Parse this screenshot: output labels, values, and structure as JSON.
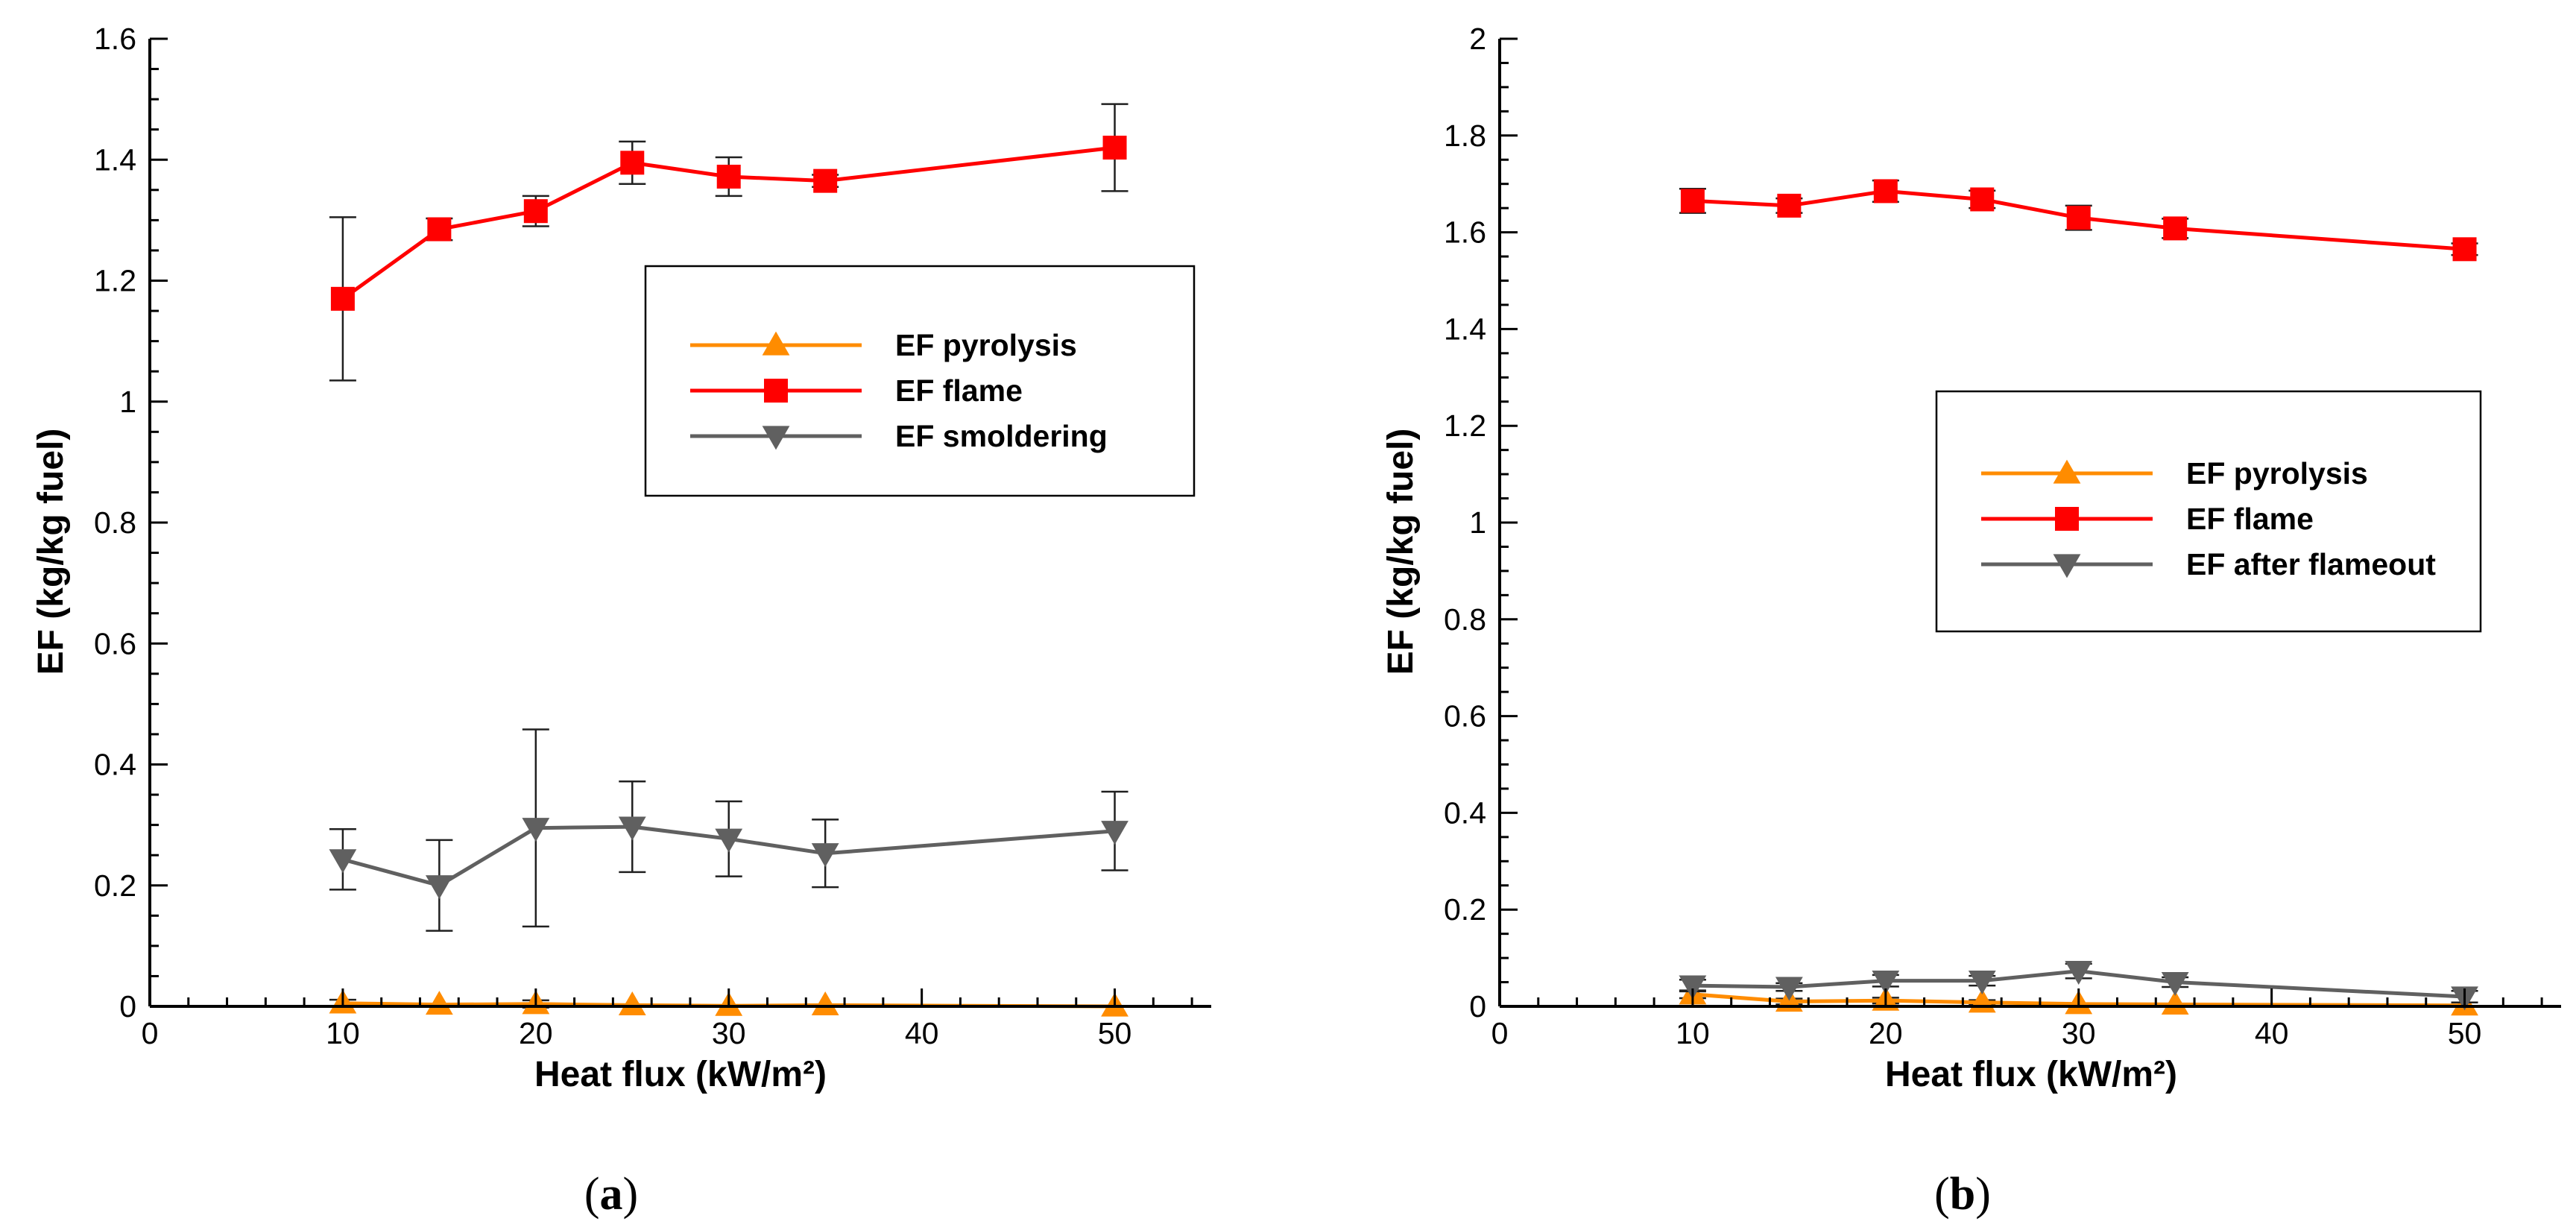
{
  "chart_data": [
    {
      "type": "line",
      "panel_label": "(a)",
      "panel_letter": "a",
      "xlabel": "Heat flux (kW/m²)",
      "ylabel": "EF (kg/kg fuel)",
      "xlim": [
        0,
        55
      ],
      "ylim": [
        0,
        1.6
      ],
      "xticks": [
        0,
        10,
        20,
        30,
        40,
        50
      ],
      "yticks": [
        0,
        0.2,
        0.4,
        0.6,
        0.8,
        1,
        1.2,
        1.4,
        1.6
      ],
      "ytick_labels": [
        "0",
        "0.2",
        "0.4",
        "0.6",
        "0.8",
        "1",
        "1.2",
        "1.4",
        "1.6"
      ],
      "grid": false,
      "legend_position": "center-right",
      "series": [
        {
          "name": "EF pyrolysis",
          "color": "#ff8c00",
          "marker": "triangle-up",
          "x": [
            10,
            15,
            20,
            25,
            30,
            35,
            50
          ],
          "y": [
            0.005,
            0.003,
            0.004,
            0.002,
            0.001,
            0.002,
            0.0
          ],
          "err": [
            0.006,
            0.002,
            0.006,
            0.003,
            0.001,
            0.003,
            0.003
          ]
        },
        {
          "name": "EF flame",
          "color": "#ff0000",
          "marker": "square",
          "x": [
            10,
            15,
            20,
            25,
            30,
            35,
            50
          ],
          "y": [
            1.17,
            1.285,
            1.315,
            1.395,
            1.372,
            1.365,
            1.42
          ],
          "err": [
            0.135,
            0.018,
            0.025,
            0.035,
            0.032,
            0.01,
            0.072
          ]
        },
        {
          "name": "EF smoldering",
          "color": "#606060",
          "marker": "triangle-down",
          "x": [
            10,
            15,
            20,
            25,
            30,
            35,
            50
          ],
          "y": [
            0.243,
            0.2,
            0.295,
            0.297,
            0.277,
            0.253,
            0.29
          ],
          "err": [
            0.05,
            0.075,
            0.163,
            0.075,
            0.062,
            0.056,
            0.065
          ]
        }
      ]
    },
    {
      "type": "line",
      "panel_label": "(b)",
      "panel_letter": "b",
      "xlabel": "Heat flux (kW/m²)",
      "ylabel": "EF (kg/kg fuel)",
      "xlim": [
        0,
        55
      ],
      "ylim": [
        0,
        2
      ],
      "xticks": [
        0,
        10,
        20,
        30,
        40,
        50
      ],
      "yticks": [
        0,
        0.2,
        0.4,
        0.6,
        0.8,
        1,
        1.2,
        1.4,
        1.6,
        1.8,
        2
      ],
      "ytick_labels": [
        "0",
        "0.2",
        "0.4",
        "0.6",
        "0.8",
        "1",
        "1.2",
        "1.4",
        "1.6",
        "1.8",
        "2"
      ],
      "grid": false,
      "legend_position": "center-right",
      "series": [
        {
          "name": "EF pyrolysis",
          "color": "#ff8c00",
          "marker": "triangle-up",
          "x": [
            10,
            15,
            20,
            25,
            30,
            35,
            50
          ],
          "y": [
            0.025,
            0.01,
            0.012,
            0.008,
            0.005,
            0.004,
            0.002
          ],
          "err": [
            0.008,
            0.006,
            0.006,
            0.005,
            0.004,
            0.003,
            0.003
          ]
        },
        {
          "name": "EF flame",
          "color": "#ff0000",
          "marker": "square",
          "x": [
            10,
            15,
            20,
            25,
            30,
            35,
            50
          ],
          "y": [
            1.665,
            1.655,
            1.685,
            1.668,
            1.63,
            1.608,
            1.565
          ],
          "err": [
            0.025,
            0.015,
            0.022,
            0.018,
            0.025,
            0.02,
            0.012
          ]
        },
        {
          "name": "EF after flameout",
          "color": "#606060",
          "marker": "triangle-down",
          "x": [
            10,
            15,
            20,
            25,
            30,
            35,
            50
          ],
          "y": [
            0.043,
            0.04,
            0.053,
            0.053,
            0.073,
            0.05,
            0.02
          ],
          "err": [
            0.012,
            0.008,
            0.012,
            0.01,
            0.015,
            0.01,
            0.012
          ]
        }
      ]
    }
  ]
}
